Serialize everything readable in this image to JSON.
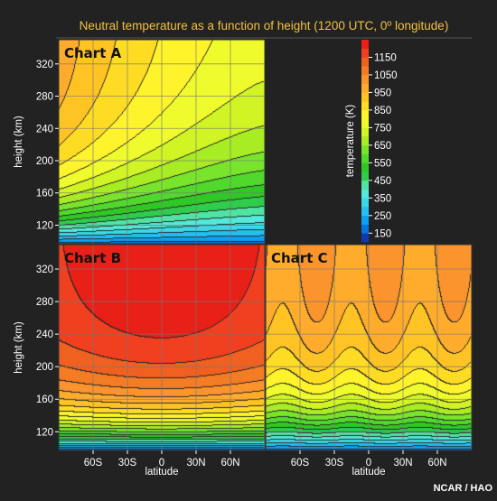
{
  "title": "Neutral temperature as a function of height (1200 UTC, 0º longitude)",
  "credit": "NCAR / HAO",
  "colors": {
    "background": "#222222",
    "title": "#f0c040",
    "axis_text": "#ffffff",
    "grid": "#777777",
    "contour": "#2a2a2a"
  },
  "chart_data": {
    "type": "heatmap",
    "title": "Neutral temperature as a function of height (1200 UTC, 0º longitude)",
    "xlabel": "latitude",
    "ylabel": "height (km)",
    "xlim": [
      -90,
      90
    ],
    "ylim": [
      97,
      350
    ],
    "x_ticks": [
      -60,
      -30,
      0,
      30,
      60
    ],
    "x_tick_labels": [
      "60S",
      "30S",
      "0",
      "30N",
      "60N"
    ],
    "y_ticks": [
      120,
      160,
      200,
      240,
      280,
      320
    ],
    "y_tick_labels": [
      "120",
      "160",
      "200",
      "240",
      "280",
      "320"
    ],
    "colorbar": {
      "label": "temperature (K)",
      "min": 100,
      "max": 1250,
      "tick_values": [
        150,
        250,
        350,
        450,
        550,
        650,
        750,
        850,
        950,
        1050,
        1150
      ],
      "tick_labels": [
        "150",
        "250",
        "350",
        "450",
        "550",
        "650",
        "750",
        "850",
        "950",
        "1050",
        "1150"
      ],
      "stops": [
        {
          "t": 100,
          "color": "#1a1aa0"
        },
        {
          "t": 200,
          "color": "#0090f0"
        },
        {
          "t": 300,
          "color": "#30d0f0"
        },
        {
          "t": 400,
          "color": "#60f0d0"
        },
        {
          "t": 500,
          "color": "#20c020"
        },
        {
          "t": 600,
          "color": "#60e030"
        },
        {
          "t": 700,
          "color": "#c0f020"
        },
        {
          "t": 800,
          "color": "#ffff30"
        },
        {
          "t": 900,
          "color": "#ffd020"
        },
        {
          "t": 1000,
          "color": "#ffa030"
        },
        {
          "t": 1100,
          "color": "#f07020"
        },
        {
          "t": 1200,
          "color": "#f03020"
        },
        {
          "t": 1250,
          "color": "#e01010"
        }
      ]
    },
    "panels": [
      {
        "label": "Chart A",
        "exospheric_temperature_range_K": [
          800,
          990
        ],
        "temperature_at_97km_K": 180,
        "high_temperature_region": "upper southern latitudes"
      },
      {
        "label": "Chart B",
        "exospheric_temperature_range_K": [
          1150,
          1250
        ],
        "temperature_at_97km_K": 180,
        "high_temperature_region": "all latitudes above ~220 km"
      },
      {
        "label": "Chart C",
        "exospheric_temperature_range_K": [
          980,
          1050
        ],
        "temperature_at_97km_K": 180,
        "high_temperature_region": "all latitudes above ~250 km"
      }
    ]
  }
}
